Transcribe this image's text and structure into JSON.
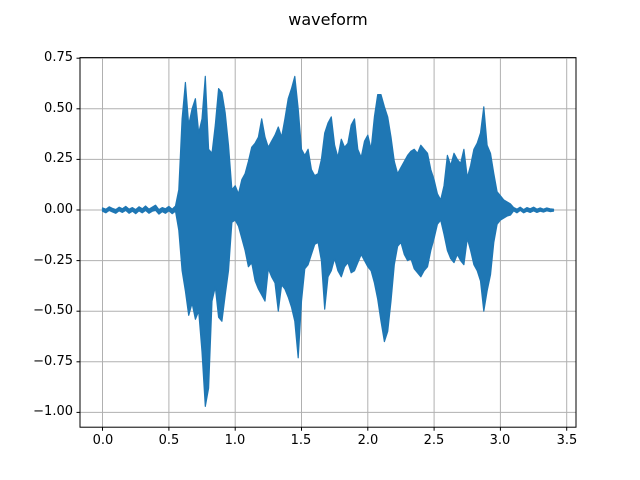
{
  "figure": {
    "background": "#ffffff"
  },
  "chart_data": {
    "type": "line",
    "subtype": "audio-waveform-envelope",
    "title": "waveform",
    "xlabel": "",
    "ylabel": "",
    "legend": null,
    "grid": true,
    "line_color": "#1f77b4",
    "grid_color": "#b0b0b0",
    "spine_color": "#000000",
    "text_color": "#000000",
    "xlim": [
      -0.17,
      3.57
    ],
    "ylim": [
      -1.073,
      0.753
    ],
    "x_tick_labels": [
      "0.0",
      "0.5",
      "1.0",
      "1.5",
      "2.0",
      "2.5",
      "3.0",
      "3.5"
    ],
    "x_tick_values": [
      0.0,
      0.5,
      1.0,
      1.5,
      2.0,
      2.5,
      3.0,
      3.5
    ],
    "y_tick_labels": [
      "0.75",
      "0.50",
      "0.25",
      "0.00",
      "−0.25",
      "−0.50",
      "−0.75",
      "−1.00"
    ],
    "y_tick_values": [
      0.75,
      0.5,
      0.25,
      0.0,
      -0.25,
      -0.5,
      -0.75,
      -1.0
    ],
    "envelope": {
      "t0": 0.0,
      "dt": 0.025,
      "upper": [
        0.01,
        0.004,
        0.016,
        0.008,
        0.002,
        0.014,
        0.006,
        0.018,
        0.004,
        0.012,
        0.002,
        0.016,
        0.006,
        0.02,
        0.004,
        0.014,
        0.024,
        0.002,
        0.012,
        0.006,
        0.018,
        0.004,
        0.02,
        0.1,
        0.45,
        0.63,
        0.42,
        0.5,
        0.55,
        0.38,
        0.45,
        0.66,
        0.3,
        0.28,
        0.42,
        0.6,
        0.58,
        0.48,
        0.32,
        0.1,
        0.12,
        0.08,
        0.15,
        0.18,
        0.24,
        0.31,
        0.33,
        0.36,
        0.45,
        0.36,
        0.31,
        0.34,
        0.37,
        0.41,
        0.36,
        0.45,
        0.55,
        0.6,
        0.66,
        0.5,
        0.3,
        0.27,
        0.3,
        0.2,
        0.17,
        0.18,
        0.25,
        0.38,
        0.43,
        0.46,
        0.32,
        0.26,
        0.35,
        0.31,
        0.33,
        0.42,
        0.45,
        0.3,
        0.26,
        0.34,
        0.37,
        0.3,
        0.46,
        0.57,
        0.57,
        0.51,
        0.46,
        0.36,
        0.24,
        0.18,
        0.21,
        0.24,
        0.27,
        0.29,
        0.3,
        0.28,
        0.32,
        0.3,
        0.28,
        0.2,
        0.15,
        0.08,
        0.05,
        0.12,
        0.27,
        0.22,
        0.28,
        0.25,
        0.23,
        0.3,
        0.16,
        0.22,
        0.3,
        0.33,
        0.38,
        0.51,
        0.32,
        0.28,
        0.18,
        0.09,
        0.07,
        0.05,
        0.04,
        0.03,
        0.012,
        0.004,
        0.014,
        0.002,
        0.012,
        0.006,
        0.014,
        0.004,
        0.01,
        0.004,
        0.01,
        0.006,
        0.004
      ],
      "lower": [
        -0.006,
        -0.014,
        -0.002,
        -0.01,
        -0.016,
        -0.004,
        -0.012,
        -0.002,
        -0.016,
        -0.006,
        -0.018,
        -0.004,
        -0.014,
        -0.002,
        -0.016,
        -0.006,
        -0.002,
        -0.02,
        -0.008,
        -0.016,
        -0.004,
        -0.018,
        -0.006,
        -0.1,
        -0.3,
        -0.4,
        -0.52,
        -0.46,
        -0.54,
        -0.5,
        -0.7,
        -0.97,
        -0.88,
        -0.45,
        -0.38,
        -0.53,
        -0.55,
        -0.42,
        -0.3,
        -0.06,
        -0.05,
        -0.08,
        -0.14,
        -0.2,
        -0.28,
        -0.26,
        -0.35,
        -0.39,
        -0.42,
        -0.45,
        -0.29,
        -0.33,
        -0.36,
        -0.5,
        -0.37,
        -0.39,
        -0.43,
        -0.48,
        -0.55,
        -0.73,
        -0.45,
        -0.29,
        -0.27,
        -0.22,
        -0.17,
        -0.16,
        -0.25,
        -0.49,
        -0.33,
        -0.3,
        -0.24,
        -0.3,
        -0.33,
        -0.28,
        -0.26,
        -0.31,
        -0.3,
        -0.26,
        -0.22,
        -0.25,
        -0.28,
        -0.3,
        -0.36,
        -0.44,
        -0.55,
        -0.65,
        -0.6,
        -0.45,
        -0.27,
        -0.18,
        -0.16,
        -0.22,
        -0.25,
        -0.24,
        -0.29,
        -0.31,
        -0.33,
        -0.3,
        -0.28,
        -0.2,
        -0.14,
        -0.07,
        -0.05,
        -0.12,
        -0.2,
        -0.24,
        -0.26,
        -0.22,
        -0.25,
        -0.27,
        -0.14,
        -0.2,
        -0.27,
        -0.3,
        -0.35,
        -0.5,
        -0.4,
        -0.32,
        -0.16,
        -0.07,
        -0.05,
        -0.04,
        -0.03,
        -0.025,
        -0.004,
        -0.014,
        -0.002,
        -0.014,
        -0.006,
        -0.012,
        -0.004,
        -0.012,
        -0.006,
        -0.01,
        -0.004,
        -0.008,
        -0.006
      ]
    }
  }
}
